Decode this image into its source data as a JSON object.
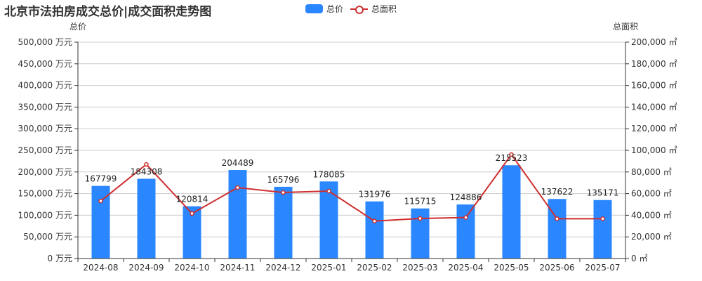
{
  "title": "北京市法拍房成交总价|成交面积走势图",
  "legend": [
    {
      "label": "总价",
      "type": "bar",
      "color": "#2a87ff"
    },
    {
      "label": "总面积",
      "type": "line",
      "color": "#cd2f2f"
    }
  ],
  "colors": {
    "bar": "#2a87ff",
    "line": "#cd2f2f",
    "grid": "#cccccc",
    "axis": "#333333",
    "text": "#333333"
  },
  "chart_data": {
    "type": "bar",
    "title": "北京市法拍房成交总价|成交面积走势图",
    "categories": [
      "2024-08",
      "2024-09",
      "2024-10",
      "2024-11",
      "2024-12",
      "2025-01",
      "2025-02",
      "2025-03",
      "2025-04",
      "2025-05",
      "2025-06",
      "2025-07"
    ],
    "series": [
      {
        "name": "总价",
        "type": "bar",
        "axis": "left",
        "unit": "万元",
        "values": [
          167799,
          184308,
          120814,
          204489,
          165796,
          178085,
          131976,
          115715,
          124886,
          215523,
          137622,
          135171
        ],
        "labels_shown": true
      },
      {
        "name": "总面积",
        "type": "line",
        "axis": "right",
        "unit": "㎡",
        "values": [
          53200,
          87000,
          41600,
          65600,
          61000,
          62300,
          34600,
          37000,
          37900,
          96100,
          36800,
          36800
        ],
        "labels_shown": false
      }
    ],
    "left_axis": {
      "name": "总价",
      "min": 0,
      "max": 500000,
      "interval": 50000,
      "tick_labels": [
        "0 万元",
        "50,000 万元",
        "100,000 万元",
        "150,000 万元",
        "200,000 万元",
        "250,000 万元",
        "300,000 万元",
        "350,000 万元",
        "400,000 万元",
        "450,000 万元",
        "500,000 万元"
      ]
    },
    "right_axis": {
      "name": "总面积",
      "min": 0,
      "max": 200000,
      "interval": 20000,
      "tick_labels": [
        "0 ㎡",
        "20,000 ㎡",
        "40,000 ㎡",
        "60,000 ㎡",
        "80,000 ㎡",
        "100,000 ㎡",
        "120,000 ㎡",
        "140,000 ㎡",
        "160,000 ㎡",
        "180,000 ㎡",
        "200,000 ㎡"
      ]
    },
    "grid": true,
    "legend_position": "top-center"
  }
}
